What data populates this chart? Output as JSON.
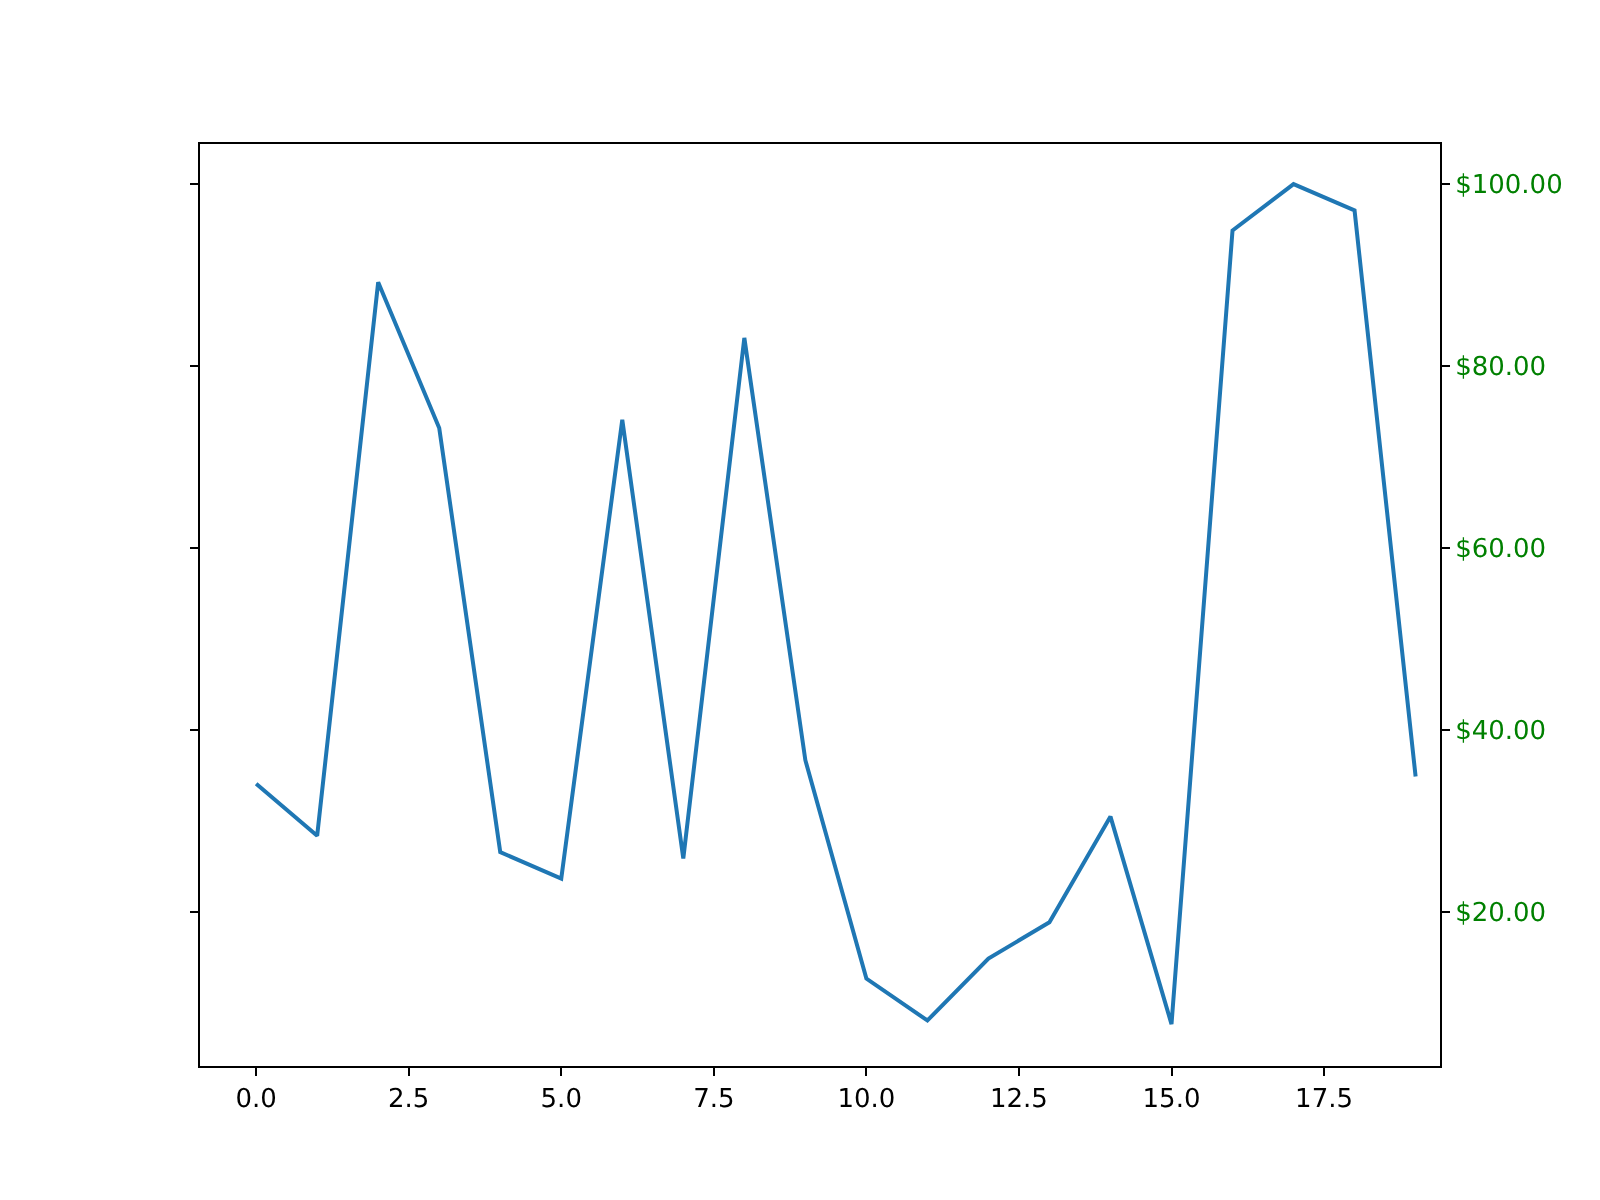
{
  "chart_data": {
    "type": "line",
    "x": [
      0,
      1,
      2,
      3,
      4,
      5,
      6,
      7,
      8,
      9,
      10,
      11,
      12,
      13,
      14,
      15,
      16,
      17,
      18,
      19
    ],
    "series": [
      {
        "color": "#1f77b4",
        "values": [
          34.1,
          28.4,
          89.2,
          73.2,
          26.6,
          23.7,
          74.1,
          25.9,
          83.1,
          36.7,
          12.7,
          8.1,
          14.9,
          18.9,
          30.5,
          7.7,
          94.9,
          100.0,
          97.1,
          34.9
        ]
      }
    ],
    "xlim": [
      -0.92,
      19.4
    ],
    "xticks": [
      {
        "value": 0,
        "label": "0.0"
      },
      {
        "value": 2.5,
        "label": "2.5"
      },
      {
        "value": 5,
        "label": "5.0"
      },
      {
        "value": 7.5,
        "label": "7.5"
      },
      {
        "value": 10,
        "label": "10.0"
      },
      {
        "value": 12.5,
        "label": "12.5"
      },
      {
        "value": 15,
        "label": "15.0"
      },
      {
        "value": 17.5,
        "label": "17.5"
      }
    ],
    "ylim": [
      3.1,
      104.4
    ],
    "yticks": [
      {
        "value": 20,
        "label": "$20.00"
      },
      {
        "value": 40,
        "label": "$40.00"
      },
      {
        "value": 60,
        "label": "$60.00"
      },
      {
        "value": 80,
        "label": "$80.00"
      },
      {
        "value": 100,
        "label": "$100.00"
      }
    ],
    "line_style": "solid",
    "marker": "none"
  }
}
